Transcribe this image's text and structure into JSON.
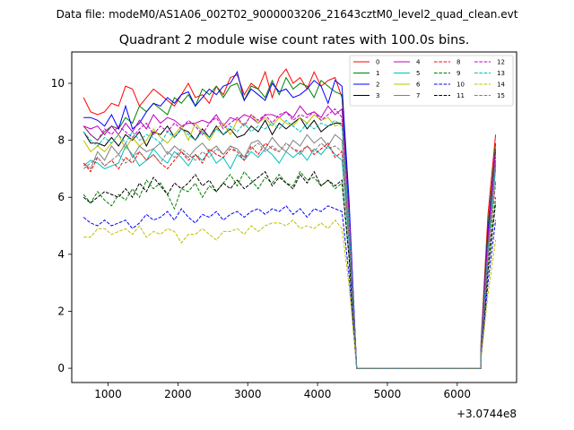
{
  "suptitle": "Data file: modeM0/AS1A06_002T02_9000003206_21643cztM0_level2_quad_clean.evt",
  "chart_data": {
    "type": "line",
    "title": "Quadrant 2 module wise count rates with 100.0s bins.",
    "xlabel": "",
    "ylabel": "",
    "x_offset_label": "+3.0744e8",
    "xlim": [
      480,
      6850
    ],
    "ylim": [
      -0.5,
      11.1
    ],
    "xticks": [
      1000,
      2000,
      3000,
      4000,
      5000,
      6000
    ],
    "xtick_labels": [
      "1000",
      "2000",
      "3000",
      "4000",
      "5000",
      "6000"
    ],
    "yticks": [
      0,
      2,
      4,
      6,
      8,
      10
    ],
    "ytick_labels": [
      "0",
      "2",
      "4",
      "6",
      "8",
      "10"
    ],
    "grid": false,
    "legend_position": "upper-right",
    "legend_columns": 4,
    "x_bins_start": 650,
    "x_bins_step": 100,
    "gap": {
      "x": [
        4560,
        6340
      ],
      "value": 0
    },
    "segment_end": [
      4450,
      4560
    ],
    "ramp": [
      6340,
      6440,
      6550
    ],
    "series": [
      {
        "name": "0",
        "color": "#ff0000",
        "dash": "solid",
        "values": [
          9.5,
          9.0,
          8.9,
          9.0,
          9.3,
          9.2,
          9.9,
          9.8,
          9.2,
          9.5,
          9.8,
          9.6,
          9.4,
          9.2,
          9.6,
          10.0,
          9.5,
          9.6,
          9.3,
          9.9,
          9.6,
          10.2,
          10.3,
          9.6,
          10.0,
          9.8,
          10.4,
          9.5,
          10.2,
          10.5,
          10.0,
          10.2,
          9.8,
          10.4,
          9.9,
          10.1,
          10.2,
          9.5
        ],
        "ramp_values": [
          0.9,
          5.4,
          8.2
        ]
      },
      {
        "name": "1",
        "color": "#008000",
        "dash": "solid",
        "values": [
          8.5,
          8.2,
          8.0,
          8.3,
          8.5,
          8.4,
          8.8,
          8.6,
          9.2,
          9.0,
          9.3,
          9.1,
          8.9,
          9.5,
          9.3,
          9.6,
          9.2,
          9.8,
          9.6,
          9.9,
          9.5,
          9.9,
          10.0,
          9.4,
          9.9,
          9.8,
          9.5,
          10.1,
          9.6,
          10.2,
          9.8,
          10.0,
          9.9,
          9.5,
          10.1,
          9.9,
          9.7,
          9.6
        ],
        "ramp_values": [
          0.8,
          5.0,
          7.9
        ]
      },
      {
        "name": "2",
        "color": "#0000ff",
        "dash": "solid",
        "values": [
          8.8,
          8.8,
          8.7,
          8.5,
          8.9,
          8.4,
          9.2,
          8.4,
          8.6,
          9.0,
          9.3,
          9.2,
          9.5,
          9.3,
          9.6,
          9.7,
          9.2,
          9.5,
          9.8,
          9.6,
          9.9,
          10.0,
          10.4,
          9.4,
          9.8,
          9.6,
          9.4,
          10.0,
          9.7,
          9.8,
          9.5,
          9.6,
          9.8,
          10.1,
          9.9,
          9.3,
          10.1,
          9.9
        ],
        "ramp_values": [
          0.7,
          4.8,
          7.6
        ]
      },
      {
        "name": "3",
        "color": "#000000",
        "dash": "solid",
        "values": [
          8.3,
          7.9,
          7.9,
          7.8,
          8.1,
          7.8,
          8.2,
          8.0,
          8.3,
          7.8,
          8.3,
          8.2,
          8.5,
          8.1,
          8.4,
          8.3,
          8.0,
          8.4,
          8.1,
          8.5,
          8.2,
          8.4,
          8.1,
          8.2,
          8.5,
          8.3,
          8.7,
          8.2,
          8.6,
          8.4,
          8.6,
          8.8,
          8.4,
          8.7,
          8.3,
          8.5,
          8.6,
          8.6
        ],
        "ramp_values": [
          0.6,
          4.4,
          7.2
        ]
      },
      {
        "name": "4",
        "color": "#bf00bf",
        "dash": "solid",
        "values": [
          8.5,
          8.4,
          8.5,
          8.2,
          8.5,
          8.2,
          8.6,
          8.3,
          8.7,
          8.4,
          8.9,
          8.6,
          8.8,
          8.7,
          8.5,
          8.6,
          8.6,
          8.7,
          8.6,
          8.9,
          8.5,
          8.8,
          8.7,
          8.9,
          8.8,
          8.6,
          8.9,
          8.9,
          8.8,
          9.0,
          8.8,
          9.2,
          8.9,
          9.0,
          8.8,
          9.2,
          8.9,
          9.1
        ],
        "ramp_values": [
          0.7,
          4.6,
          7.7
        ]
      },
      {
        "name": "5",
        "color": "#00bfbf",
        "dash": "solid",
        "values": [
          7.1,
          7.3,
          7.2,
          7.0,
          7.1,
          7.2,
          7.8,
          7.5,
          7.1,
          7.3,
          7.7,
          7.4,
          7.2,
          7.6,
          7.4,
          7.1,
          7.5,
          7.3,
          7.6,
          7.2,
          7.4,
          7.0,
          7.5,
          7.3,
          7.6,
          7.4,
          7.7,
          7.5,
          7.2,
          7.6,
          7.4,
          7.6,
          7.3,
          7.7,
          7.5,
          7.8,
          7.5,
          7.3
        ],
        "ramp_values": [
          0.5,
          4.0,
          7.0
        ]
      },
      {
        "name": "6",
        "color": "#bfbf00",
        "dash": "solid",
        "values": [
          8.0,
          7.6,
          7.8,
          7.6,
          7.9,
          8.2,
          7.7,
          8.1,
          7.8,
          8.0,
          8.4,
          8.1,
          7.9,
          8.2,
          8.5,
          8.0,
          8.6,
          8.3,
          8.0,
          8.4,
          8.6,
          8.2,
          8.7,
          8.5,
          8.9,
          8.6,
          8.8,
          8.5,
          8.8,
          8.6,
          8.5,
          8.8,
          8.6,
          8.9,
          8.7,
          8.8,
          8.5,
          8.6
        ],
        "ramp_values": [
          0.5,
          4.2,
          7.3
        ]
      },
      {
        "name": "7",
        "color": "#808080",
        "dash": "solid",
        "values": [
          7.2,
          7.0,
          7.6,
          7.3,
          7.8,
          7.5,
          7.9,
          7.4,
          7.8,
          7.6,
          7.7,
          7.9,
          7.5,
          7.8,
          7.6,
          7.4,
          7.7,
          7.9,
          7.6,
          7.8,
          7.5,
          7.8,
          7.7,
          7.4,
          7.9,
          8.0,
          7.7,
          8.1,
          7.8,
          7.6,
          8.0,
          7.8,
          8.2,
          7.9,
          8.1,
          7.8,
          8.2,
          8.0
        ],
        "ramp_values": [
          0.5,
          4.0,
          7.1
        ]
      },
      {
        "name": "8",
        "color": "#ff0000",
        "dash": "dashed",
        "values": [
          7.2,
          6.9,
          7.4,
          7.1,
          7.3,
          7.0,
          7.4,
          7.2,
          7.6,
          7.3,
          7.5,
          7.2,
          7.0,
          7.3,
          7.6,
          7.3,
          7.5,
          7.2,
          7.7,
          7.5,
          7.4,
          7.7,
          7.6,
          7.3,
          7.8,
          7.5,
          7.9,
          7.7,
          7.6,
          7.9,
          7.7,
          7.6,
          7.8,
          7.5,
          7.7,
          7.9,
          7.4,
          7.6
        ],
        "ramp_values": [
          0.5,
          3.8,
          6.5
        ]
      },
      {
        "name": "9",
        "color": "#008000",
        "dash": "dashed",
        "values": [
          6.1,
          5.8,
          6.2,
          5.9,
          5.7,
          6.1,
          5.9,
          6.3,
          6.0,
          6.6,
          6.3,
          6.5,
          6.1,
          5.6,
          6.3,
          6.2,
          6.5,
          6.0,
          6.4,
          6.2,
          6.5,
          6.8,
          6.4,
          6.9,
          6.6,
          6.3,
          6.7,
          6.5,
          6.8,
          6.5,
          6.4,
          6.9,
          6.6,
          6.7,
          6.4,
          6.6,
          6.3,
          6.5
        ],
        "ramp_values": [
          0.4,
          3.5,
          6.0
        ]
      },
      {
        "name": "10",
        "color": "#0000ff",
        "dash": "dashed",
        "values": [
          5.3,
          5.1,
          5.0,
          5.2,
          5.0,
          5.1,
          5.2,
          4.9,
          5.1,
          5.4,
          5.2,
          5.3,
          5.5,
          5.2,
          5.6,
          5.3,
          5.1,
          5.4,
          5.3,
          5.5,
          5.2,
          5.4,
          5.5,
          5.3,
          5.5,
          5.6,
          5.4,
          5.6,
          5.5,
          5.7,
          5.4,
          5.6,
          5.3,
          5.6,
          5.5,
          5.7,
          5.6,
          5.5
        ],
        "ramp_values": [
          0.4,
          3.0,
          5.2
        ]
      },
      {
        "name": "11",
        "color": "#000000",
        "dash": "dashed",
        "values": [
          6.0,
          5.8,
          6.0,
          6.2,
          6.1,
          6.0,
          6.3,
          6.0,
          6.5,
          6.2,
          6.7,
          6.4,
          6.1,
          6.5,
          6.3,
          6.5,
          6.8,
          6.4,
          6.6,
          6.2,
          6.5,
          6.3,
          6.6,
          6.3,
          6.5,
          6.7,
          6.9,
          6.4,
          6.7,
          6.5,
          6.3,
          6.8,
          6.5,
          6.9,
          6.4,
          6.6,
          6.4,
          6.6
        ],
        "ramp_values": [
          0.4,
          3.4,
          5.8
        ]
      },
      {
        "name": "12",
        "color": "#bf00bf",
        "dash": "dashed",
        "values": [
          8.5,
          8.2,
          8.0,
          8.4,
          8.2,
          8.5,
          8.3,
          8.1,
          8.4,
          8.6,
          8.2,
          8.5,
          8.3,
          8.6,
          8.4,
          8.7,
          8.5,
          8.2,
          8.6,
          8.8,
          8.4,
          8.6,
          8.8,
          8.5,
          8.9,
          8.7,
          8.9,
          8.6,
          8.9,
          9.0,
          8.7,
          8.9,
          8.8,
          9.0,
          8.7,
          8.9,
          9.1,
          8.8
        ],
        "ramp_values": [
          0.6,
          4.4,
          7.4
        ]
      },
      {
        "name": "13",
        "color": "#00bfbf",
        "dash": "dashed",
        "values": [
          8.3,
          8.0,
          7.8,
          8.1,
          7.9,
          8.2,
          7.9,
          8.3,
          8.0,
          8.2,
          8.1,
          7.9,
          8.3,
          8.1,
          8.4,
          8.2,
          8.0,
          8.3,
          8.1,
          8.4,
          8.2,
          8.5,
          8.3,
          8.6,
          8.3,
          8.5,
          8.4,
          8.6,
          8.4,
          8.7,
          8.5,
          8.3,
          8.6,
          8.4,
          8.6,
          8.5,
          8.7,
          8.5
        ],
        "ramp_values": [
          0.6,
          4.2,
          7.2
        ]
      },
      {
        "name": "14",
        "color": "#bfbf00",
        "dash": "dashed",
        "values": [
          4.6,
          4.6,
          4.9,
          4.9,
          4.7,
          4.8,
          4.9,
          4.7,
          5.0,
          4.6,
          4.8,
          4.7,
          4.9,
          4.8,
          4.4,
          4.7,
          4.7,
          4.9,
          4.7,
          4.5,
          4.8,
          4.8,
          4.9,
          4.7,
          5.0,
          4.8,
          5.0,
          5.1,
          5.1,
          5.0,
          5.2,
          4.9,
          5.0,
          4.9,
          5.1,
          4.9,
          5.2,
          4.9
        ],
        "ramp_values": [
          0.3,
          2.6,
          4.5
        ]
      },
      {
        "name": "15",
        "color": "#808080",
        "dash": "dashed",
        "values": [
          7.0,
          7.2,
          7.4,
          7.1,
          7.3,
          7.5,
          7.2,
          7.4,
          7.6,
          7.3,
          7.5,
          7.2,
          7.6,
          7.4,
          7.7,
          7.5,
          7.3,
          7.6,
          7.4,
          7.7,
          7.5,
          7.8,
          7.6,
          7.4,
          7.7,
          7.9,
          7.6,
          7.8,
          7.6,
          7.9,
          7.7,
          7.5,
          7.8,
          7.6,
          7.9,
          7.7,
          7.8,
          7.6
        ],
        "ramp_values": [
          0.5,
          3.8,
          6.6
        ]
      }
    ]
  }
}
